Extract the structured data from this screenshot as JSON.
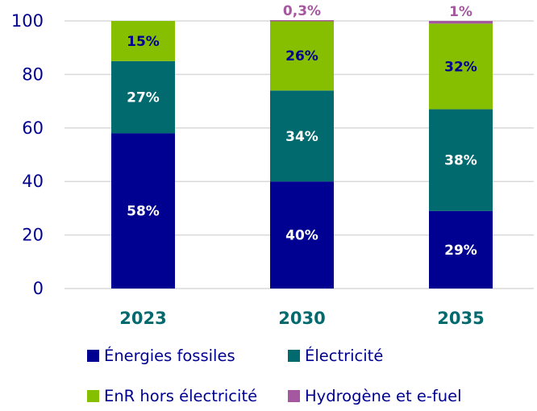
{
  "chart_data": {
    "type": "bar",
    "stacked": true,
    "title": "",
    "xlabel": "",
    "ylabel": "",
    "ylim": [
      0,
      100
    ],
    "yticks": [
      0,
      20,
      40,
      60,
      80,
      100
    ],
    "grid": true,
    "legend_position": "bottom",
    "categories": [
      "2023",
      "2030",
      "2035"
    ],
    "series": [
      {
        "name": "Énergies fossiles",
        "color": "#000091",
        "label_color": "#ffffff",
        "values": [
          58,
          40,
          29
        ],
        "labels": [
          "58%",
          "40%",
          "29%"
        ]
      },
      {
        "name": "Électricité",
        "color": "#006a6f",
        "label_color": "#ffffff",
        "values": [
          27,
          34,
          38
        ],
        "labels": [
          "27%",
          "34%",
          "38%"
        ]
      },
      {
        "name": "EnR hors électricité",
        "color": "#86bf00",
        "label_color": "#000091",
        "values": [
          15,
          26,
          32
        ],
        "labels": [
          "15%",
          "26%",
          "32%"
        ]
      },
      {
        "name": "Hydrogène et e-fuel",
        "color": "#a558a0",
        "label_color": "#a558a0",
        "values": [
          0,
          0.3,
          1
        ],
        "labels": [
          "",
          "0,3%",
          "1%"
        ]
      }
    ]
  }
}
